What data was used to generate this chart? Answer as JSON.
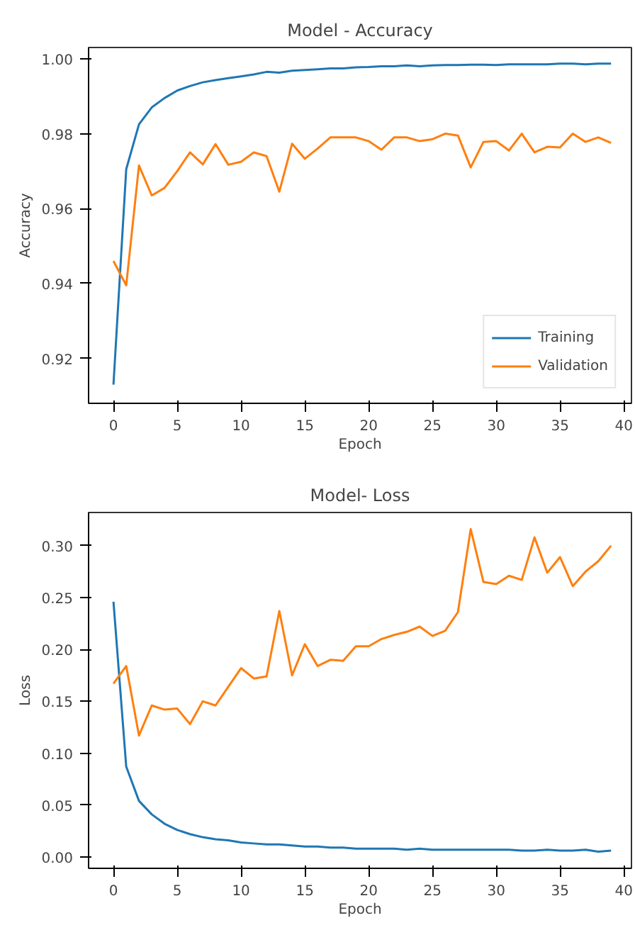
{
  "chart_data": [
    {
      "type": "line",
      "title": "Model - Accuracy",
      "xlabel": "Epoch",
      "ylabel": "Accuracy",
      "x": [
        0,
        1,
        2,
        3,
        4,
        5,
        6,
        7,
        8,
        9,
        10,
        11,
        12,
        13,
        14,
        15,
        16,
        17,
        18,
        19,
        20,
        21,
        22,
        23,
        24,
        25,
        26,
        27,
        28,
        29,
        30,
        31,
        32,
        33,
        34,
        35,
        36,
        37,
        38,
        39
      ],
      "xlim": [
        -1.95,
        40.6
      ],
      "xticks": [
        0,
        5,
        10,
        15,
        20,
        25,
        30,
        35,
        40
      ],
      "ylim": [
        0.908,
        1.003
      ],
      "yticks": [
        {
          "value": 0.92,
          "label": "0.92"
        },
        {
          "value": 0.94,
          "label": "0.94"
        },
        {
          "value": 0.96,
          "label": "0.96"
        },
        {
          "value": 0.98,
          "label": "0.98"
        },
        {
          "value": 1.0,
          "label": "1.00"
        }
      ],
      "grid": false,
      "legend": "bottom right",
      "series": [
        {
          "name": "Training",
          "color": "#1f77b4",
          "values": [
            0.913,
            0.9705,
            0.9825,
            0.987,
            0.9895,
            0.9915,
            0.9927,
            0.9937,
            0.9943,
            0.9948,
            0.9953,
            0.9958,
            0.9965,
            0.9963,
            0.9968,
            0.997,
            0.9972,
            0.9974,
            0.9974,
            0.9977,
            0.9978,
            0.998,
            0.998,
            0.9982,
            0.998,
            0.9982,
            0.9983,
            0.9983,
            0.9984,
            0.9984,
            0.9983,
            0.9985,
            0.9985,
            0.9985,
            0.9985,
            0.9987,
            0.9987,
            0.9985,
            0.9987,
            0.9987
          ]
        },
        {
          "name": "Validation",
          "color": "#ff7f0e",
          "values": [
            0.946,
            0.9395,
            0.9715,
            0.9635,
            0.9655,
            0.97,
            0.975,
            0.9718,
            0.9772,
            0.9717,
            0.9725,
            0.975,
            0.974,
            0.9645,
            0.9773,
            0.9733,
            0.976,
            0.979,
            0.979,
            0.979,
            0.978,
            0.9757,
            0.979,
            0.979,
            0.978,
            0.9785,
            0.98,
            0.9795,
            0.971,
            0.9778,
            0.978,
            0.9755,
            0.98,
            0.975,
            0.9765,
            0.9763,
            0.98,
            0.9778,
            0.979,
            0.9775
          ]
        }
      ]
    },
    {
      "type": "line",
      "title": "Model- Loss",
      "xlabel": "Epoch",
      "ylabel": "Loss",
      "x": [
        0,
        1,
        2,
        3,
        4,
        5,
        6,
        7,
        8,
        9,
        10,
        11,
        12,
        13,
        14,
        15,
        16,
        17,
        18,
        19,
        20,
        21,
        22,
        23,
        24,
        25,
        26,
        27,
        28,
        29,
        30,
        31,
        32,
        33,
        34,
        35,
        36,
        37,
        38,
        39
      ],
      "xlim": [
        -1.95,
        40.6
      ],
      "xticks": [
        0,
        5,
        10,
        15,
        20,
        25,
        30,
        35,
        40
      ],
      "ylim": [
        -0.011,
        0.332
      ],
      "yticks": [
        {
          "value": 0,
          "label": "0.00"
        },
        {
          "value": 0.05,
          "label": "0.05"
        },
        {
          "value": 0.1,
          "label": "0.10"
        },
        {
          "value": 0.15,
          "label": "0.15"
        },
        {
          "value": 0.2,
          "label": "0.20"
        },
        {
          "value": 0.25,
          "label": "0.25"
        },
        {
          "value": 0.3,
          "label": "0.30"
        }
      ],
      "grid": false,
      "series": [
        {
          "color": "#1f77b4",
          "values": [
            0.246,
            0.087,
            0.054,
            0.041,
            0.032,
            0.026,
            0.022,
            0.019,
            0.017,
            0.016,
            0.014,
            0.013,
            0.012,
            0.012,
            0.011,
            0.01,
            0.01,
            0.009,
            0.009,
            0.008,
            0.008,
            0.008,
            0.008,
            0.007,
            0.008,
            0.007,
            0.007,
            0.007,
            0.007,
            0.007,
            0.007,
            0.007,
            0.006,
            0.006,
            0.007,
            0.006,
            0.006,
            0.007,
            0.005,
            0.006
          ]
        },
        {
          "color": "#ff7f0e",
          "values": [
            0.167,
            0.184,
            0.117,
            0.146,
            0.142,
            0.143,
            0.128,
            0.15,
            0.146,
            0.164,
            0.182,
            0.172,
            0.174,
            0.237,
            0.175,
            0.205,
            0.184,
            0.19,
            0.189,
            0.203,
            0.203,
            0.21,
            0.214,
            0.217,
            0.222,
            0.213,
            0.218,
            0.236,
            0.316,
            0.265,
            0.263,
            0.271,
            0.267,
            0.308,
            0.274,
            0.289,
            0.261,
            0.275,
            0.285,
            0.3
          ]
        }
      ]
    }
  ]
}
